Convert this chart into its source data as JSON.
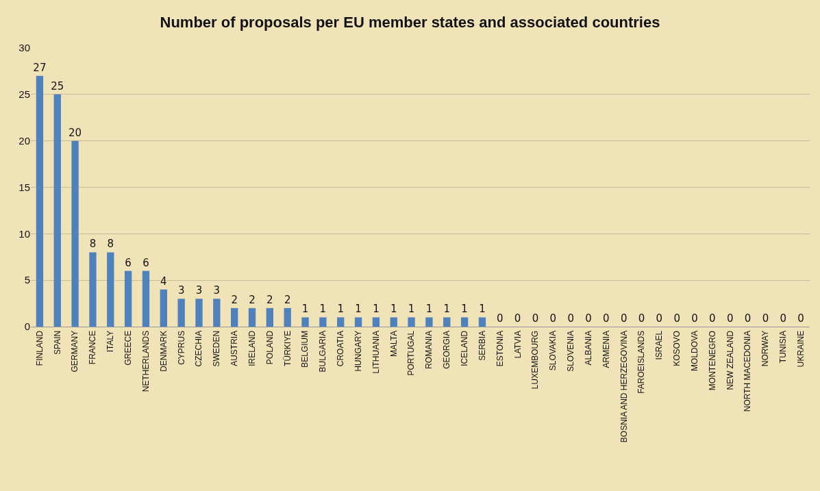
{
  "chart_data": {
    "type": "bar",
    "title": "Number of proposals per EU member states and associated countries",
    "categories": [
      "FINLAND",
      "SPAIN",
      "GERMANY",
      "FRANCE",
      "ITALY",
      "GREECE",
      "NETHERLANDS",
      "DENMARK",
      "CYPRUS",
      "CZECHIA",
      "SWEDEN",
      "AUSTRIA",
      "IRELAND",
      "POLAND",
      "TÜRKIYE",
      "BELGIUM",
      "BULGARIA",
      "CROATIA",
      "HUNGARY",
      "LITHUANIA",
      "MALTA",
      "PORTUGAL",
      "ROMANIA",
      "GEORGIA",
      "ICELAND",
      "SERBIA",
      "ESTONIA",
      "LATVIA",
      "LUXEMBOURG",
      "SLOVAKIA",
      "SLOVENIA",
      "ALBANIA",
      "ARMENIA",
      "BOSNIA AND HERZEGOVINA",
      "FAROEISLANDS",
      "ISRAEL",
      "KOSOVO",
      "MOLDOVA",
      "MONTENEGRO",
      "NEW ZEALAND",
      "NORTH MACEDONIA",
      "NORWAY",
      "TUNISIA",
      "UKRAINE"
    ],
    "values": [
      27,
      25,
      20,
      8,
      8,
      6,
      6,
      4,
      3,
      3,
      3,
      2,
      2,
      2,
      2,
      1,
      1,
      1,
      1,
      1,
      1,
      1,
      1,
      1,
      1,
      1,
      0,
      0,
      0,
      0,
      0,
      0,
      0,
      0,
      0,
      0,
      0,
      0,
      0,
      0,
      0,
      0,
      0,
      0
    ],
    "color": "#4f81bd",
    "ylim": [
      0,
      30
    ],
    "yticks": [
      0,
      5,
      10,
      15,
      20,
      25,
      30
    ],
    "grid": "y",
    "data_labels": true,
    "legend": false
  }
}
